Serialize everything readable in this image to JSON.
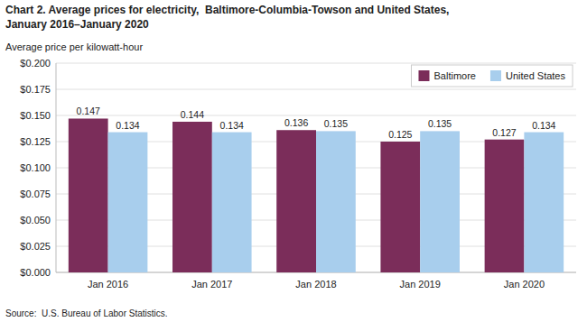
{
  "chart_data": {
    "type": "bar",
    "title": "Chart 2. Average prices for electricity,  Baltimore-Columbia-Towson and United States,",
    "subtitle": "January 2016–January 2020",
    "y_label": "Average price per kilowatt-hour",
    "source": "Source:  U.S. Bureau of Labor Statistics.",
    "categories": [
      "Jan 2016",
      "Jan 2017",
      "Jan 2018",
      "Jan 2019",
      "Jan 2020"
    ],
    "series": [
      {
        "name": "Baltimore",
        "color": "#7B2D5A",
        "values": [
          0.147,
          0.144,
          0.136,
          0.125,
          0.127
        ]
      },
      {
        "name": "United States",
        "color": "#A8CEED",
        "values": [
          0.134,
          0.134,
          0.135,
          0.135,
          0.134
        ]
      }
    ],
    "ylim": [
      0,
      0.2
    ],
    "yticks": [
      {
        "value": 0.0,
        "label": "$0.000"
      },
      {
        "value": 0.025,
        "label": "$0.025"
      },
      {
        "value": 0.05,
        "label": "$0.050"
      },
      {
        "value": 0.075,
        "label": "$0.075"
      },
      {
        "value": 0.1,
        "label": "$0.100"
      },
      {
        "value": 0.125,
        "label": "$0.125"
      },
      {
        "value": 0.15,
        "label": "$0.150"
      },
      {
        "value": 0.175,
        "label": "$0.175"
      },
      {
        "value": 0.2,
        "label": "$0.200"
      }
    ],
    "grid": true,
    "legend": "upper right",
    "data_labels": true
  }
}
